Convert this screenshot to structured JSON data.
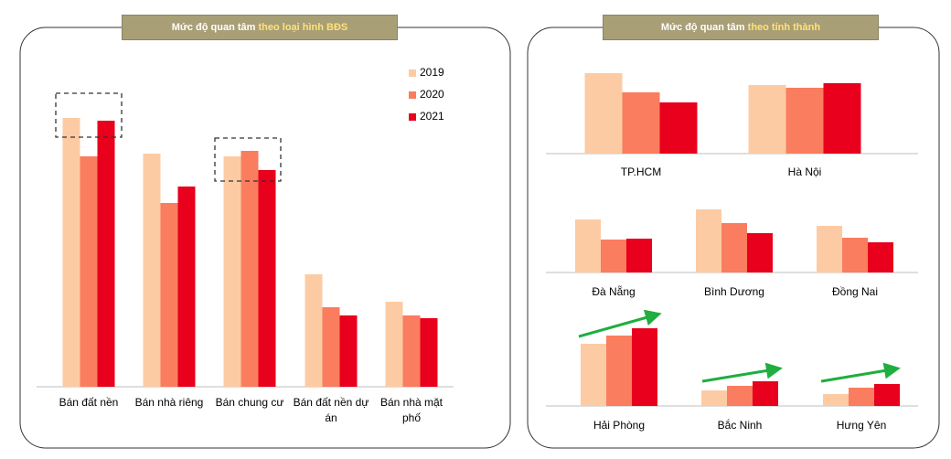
{
  "chart_data": [
    {
      "type": "bar",
      "title": "Mức độ quan tâm",
      "title_highlight": "theo loại hình BĐS",
      "categories": [
        "Bán đất nền",
        "Bán nhà riêng",
        "Bán chung cư",
        "Bán đất nền dự án",
        "Bán nhà mặt phố"
      ],
      "series": [
        {
          "name": "2019",
          "color": "#fdcba3",
          "values": [
            98,
            85,
            84,
            41,
            31
          ]
        },
        {
          "name": "2020",
          "color": "#f97d5e",
          "values": [
            84,
            67,
            86,
            29,
            26
          ]
        },
        {
          "name": "2021",
          "color": "#e8001c",
          "values": [
            97,
            73,
            79,
            26,
            25
          ]
        }
      ],
      "ylim": [
        0,
        100
      ],
      "legend": "top-right",
      "highlight": [
        0,
        2
      ]
    },
    {
      "type": "bar",
      "title": "Mức độ quan tâm",
      "title_highlight": "theo tỉnh thành",
      "categories": [
        "TP.HCM",
        "Hà Nội",
        "Đà Nẵng",
        "Bình Dương",
        "Đồng Nai",
        "Hải Phòng",
        "Bắc Ninh",
        "Hưng Yên"
      ],
      "series": [
        {
          "color": "#fdcba3",
          "values": [
            88,
            75,
            58,
            69,
            51,
            68,
            17,
            13
          ]
        },
        {
          "color": "#f97d5e",
          "values": [
            67,
            72,
            36,
            54,
            38,
            77,
            22,
            20
          ]
        },
        {
          "color": "#e8001c",
          "values": [
            56,
            77,
            37,
            43,
            33,
            85,
            27,
            24
          ]
        }
      ],
      "ylim": [
        0,
        100
      ],
      "rising": [
        5,
        6,
        7
      ]
    }
  ]
}
